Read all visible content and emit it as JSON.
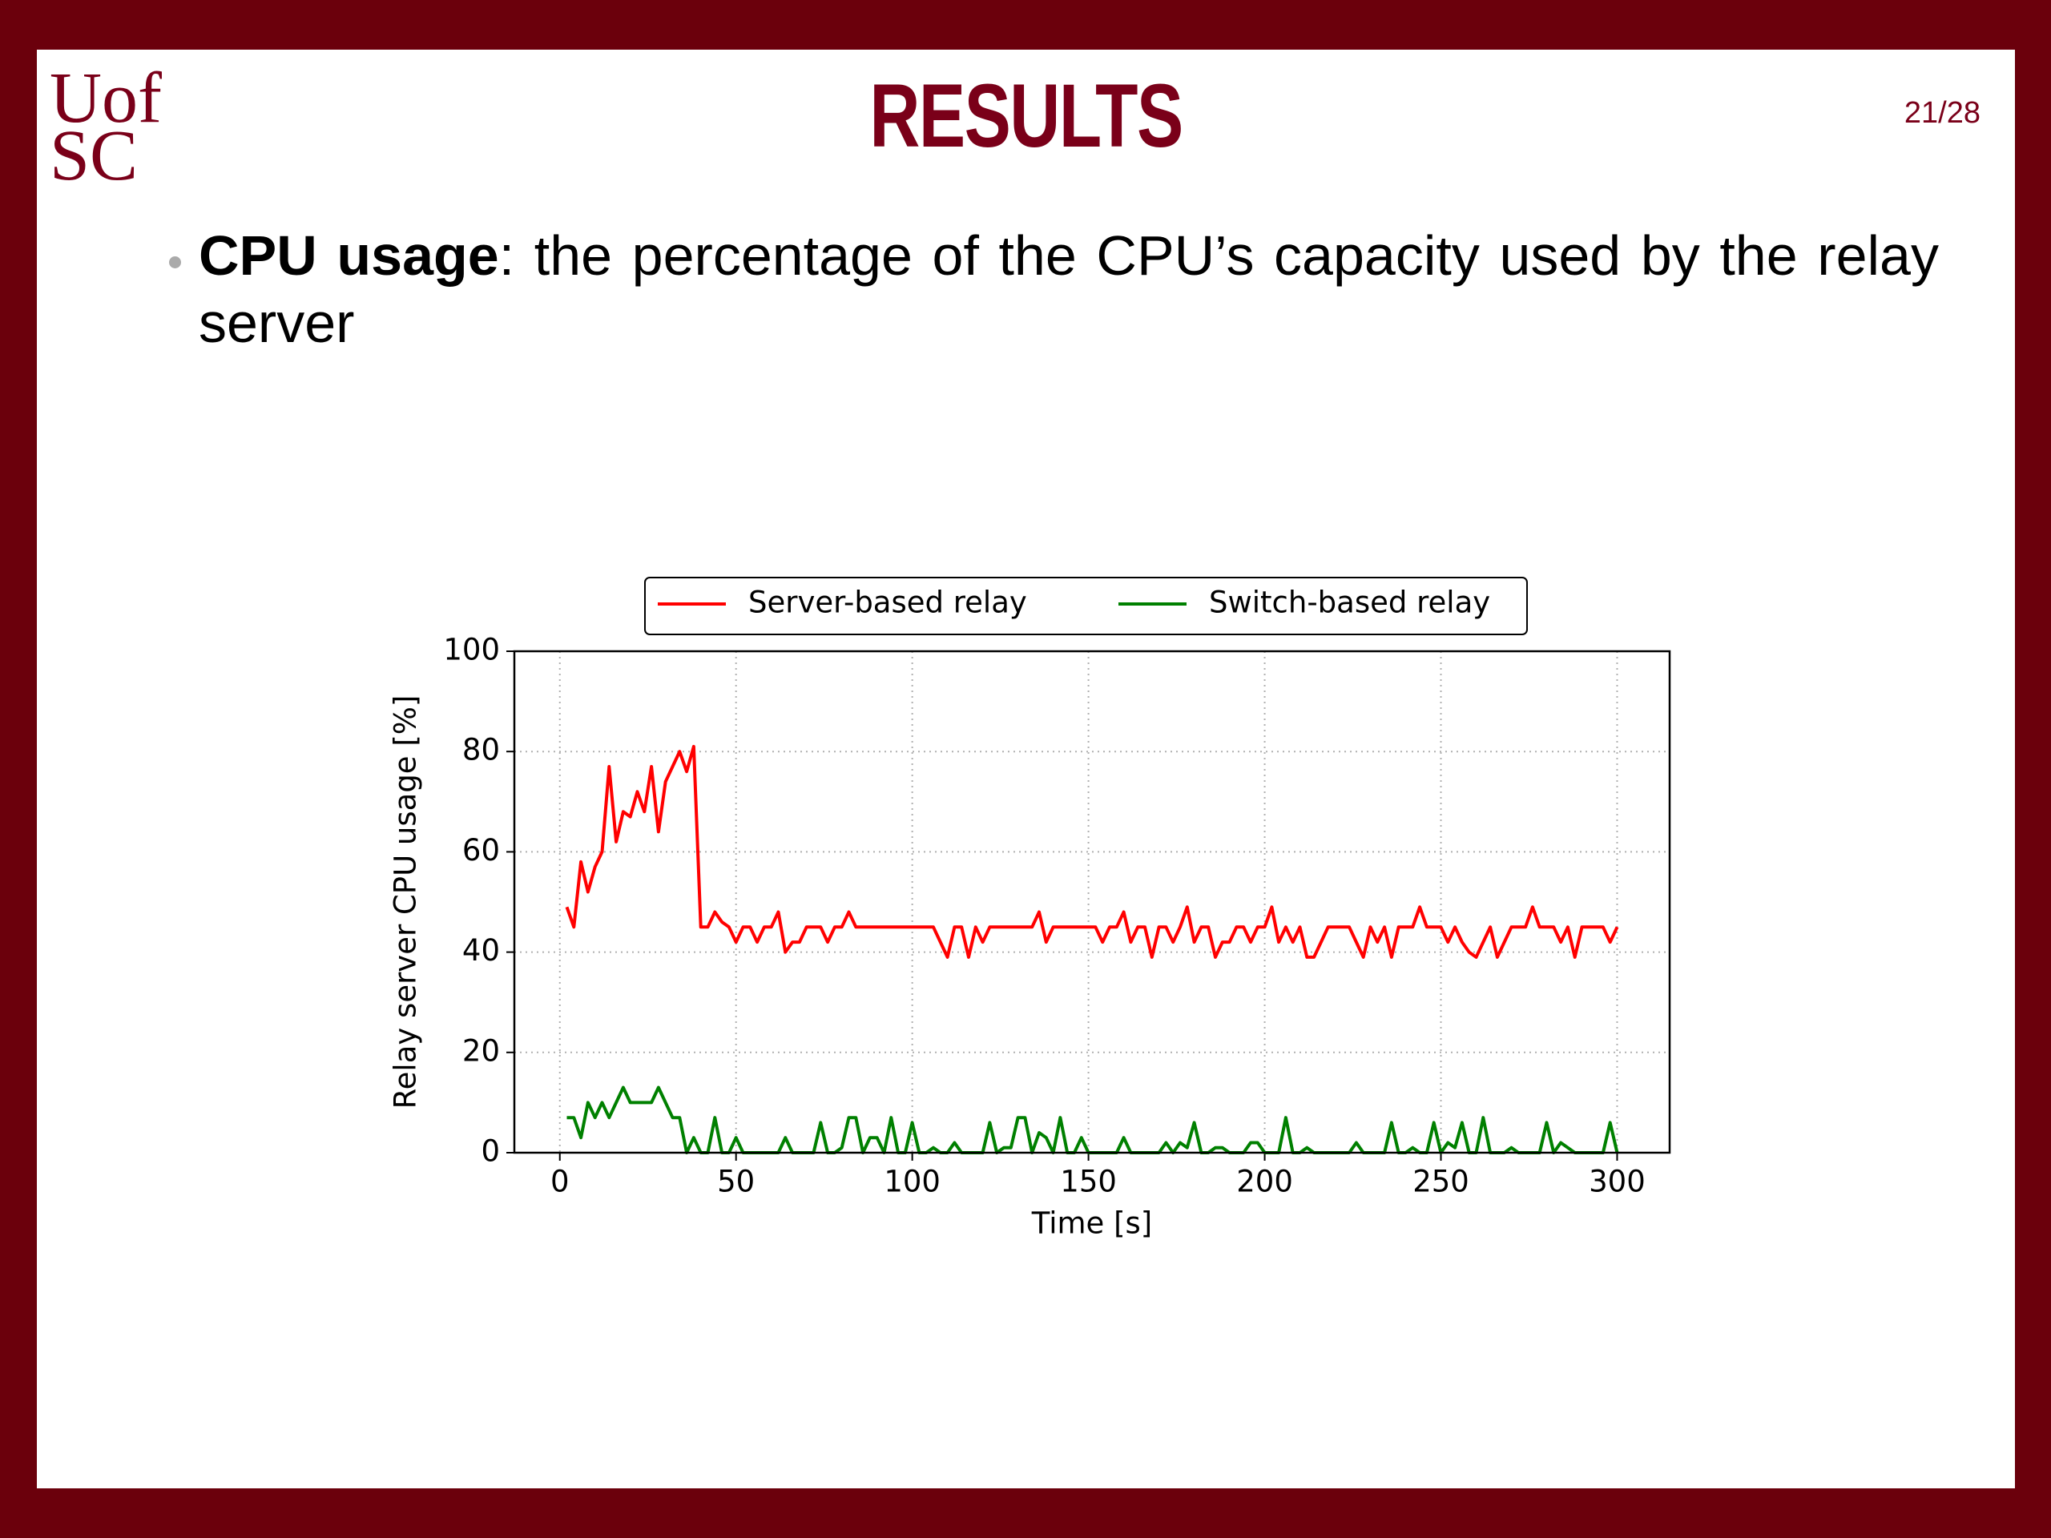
{
  "slide": {
    "logo": [
      "Uof",
      "SC"
    ],
    "title": "RESULTS",
    "page": "21/28",
    "bullet": {
      "term": "CPU usage",
      "text": ": the percentage of the CPU’s capacity used by the relay server"
    }
  },
  "chart_data": {
    "type": "line",
    "xlabel": "Time [s]",
    "ylabel": "Relay server CPU usage [%]",
    "x": [
      2,
      4,
      6,
      8,
      10,
      12,
      14,
      16,
      18,
      20,
      22,
      24,
      26,
      28,
      30,
      32,
      34,
      36,
      38,
      40,
      42,
      44,
      46,
      48,
      50,
      52,
      54,
      56,
      58,
      60,
      62,
      64,
      66,
      68,
      70,
      72,
      74,
      76,
      78,
      80,
      82,
      84,
      86,
      88,
      90,
      92,
      94,
      96,
      98,
      100,
      102,
      104,
      106,
      108,
      110,
      112,
      114,
      116,
      118,
      120,
      122,
      124,
      126,
      128,
      130,
      132,
      134,
      136,
      138,
      140,
      142,
      144,
      146,
      148,
      150,
      152,
      154,
      156,
      158,
      160,
      162,
      164,
      166,
      168,
      170,
      172,
      174,
      176,
      178,
      180,
      182,
      184,
      186,
      188,
      190,
      192,
      194,
      196,
      198,
      200,
      202,
      204,
      206,
      208,
      210,
      212,
      214,
      216,
      218,
      220,
      222,
      224,
      226,
      228,
      230,
      232,
      234,
      236,
      238,
      240,
      242,
      244,
      246,
      248,
      250,
      252,
      254,
      256,
      258,
      260,
      262,
      264,
      266,
      268,
      270,
      272,
      274,
      276,
      278,
      280,
      282,
      284,
      286,
      288,
      290,
      292,
      294,
      296,
      298,
      300
    ],
    "series": [
      {
        "name": "Server-based relay",
        "color": "#ff0000",
        "values": [
          49,
          45,
          58,
          52,
          57,
          60,
          77,
          62,
          68,
          67,
          72,
          68,
          77,
          64,
          74,
          77,
          80,
          76,
          81,
          45,
          45,
          48,
          46,
          45,
          42,
          45,
          45,
          42,
          45,
          45,
          48,
          40,
          42,
          42,
          45,
          45,
          45,
          42,
          45,
          45,
          48,
          45,
          45,
          45,
          45,
          45,
          45,
          45,
          45,
          45,
          45,
          45,
          45,
          42,
          39,
          45,
          45,
          39,
          45,
          42,
          45,
          45,
          45,
          45,
          45,
          45,
          45,
          48,
          42,
          45,
          45,
          45,
          45,
          45,
          45,
          45,
          42,
          45,
          45,
          48,
          42,
          45,
          45,
          39,
          45,
          45,
          42,
          45,
          49,
          42,
          45,
          45,
          39,
          42,
          42,
          45,
          45,
          42,
          45,
          45,
          49,
          42,
          45,
          42,
          45,
          39,
          39,
          42,
          45,
          45,
          45,
          45,
          42,
          39,
          45,
          42,
          45,
          39,
          45,
          45,
          45,
          49,
          45,
          45,
          45,
          42,
          45,
          42,
          40,
          39,
          42,
          45,
          39,
          42,
          45,
          45,
          45,
          49,
          45,
          45,
          45,
          42,
          45,
          39,
          45,
          45,
          45,
          45,
          42,
          45
        ]
      },
      {
        "name": "Switch-based relay",
        "color": "#008000",
        "values": [
          7,
          7,
          3,
          10,
          7,
          10,
          7,
          10,
          13,
          10,
          10,
          10,
          10,
          13,
          10,
          7,
          7,
          0,
          3,
          0,
          0,
          7,
          0,
          0,
          3,
          0,
          0,
          0,
          0,
          0,
          0,
          3,
          0,
          0,
          0,
          0,
          6,
          0,
          0,
          1,
          7,
          7,
          0,
          3,
          3,
          0,
          7,
          0,
          0,
          6,
          0,
          0,
          1,
          0,
          0,
          2,
          0,
          0,
          0,
          0,
          6,
          0,
          1,
          1,
          7,
          7,
          0,
          4,
          3,
          0,
          7,
          0,
          0,
          3,
          0,
          0,
          0,
          0,
          0,
          3,
          0,
          0,
          0,
          0,
          0,
          2,
          0,
          2,
          1,
          6,
          0,
          0,
          1,
          1,
          0,
          0,
          0,
          2,
          2,
          0,
          0,
          0,
          7,
          0,
          0,
          1,
          0,
          0,
          0,
          0,
          0,
          0,
          2,
          0,
          0,
          0,
          0,
          6,
          0,
          0,
          1,
          0,
          0,
          6,
          0,
          2,
          1,
          6,
          0,
          0,
          7,
          0,
          0,
          0,
          1,
          0,
          0,
          0,
          0,
          6,
          0,
          2,
          1,
          0,
          0,
          0,
          0,
          0,
          6,
          0
        ]
      }
    ],
    "xlim": [
      -12.9,
      314.9
    ],
    "xticks": [
      0,
      50,
      100,
      150,
      200,
      250,
      300
    ],
    "ylim": [
      0,
      100
    ],
    "yticks": [
      0,
      20,
      40,
      60,
      80,
      100
    ],
    "grid": true,
    "legend": "top"
  }
}
